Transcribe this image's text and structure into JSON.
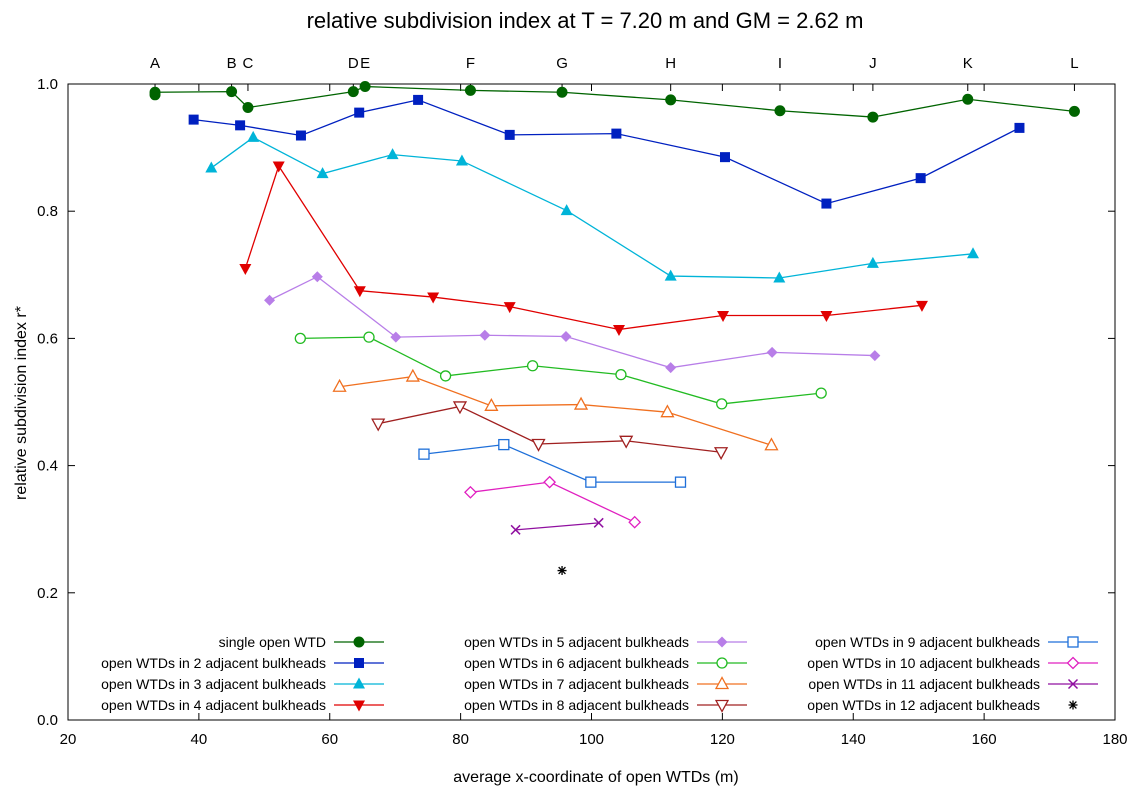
{
  "chart_data": {
    "type": "line",
    "title": "relative subdivision index at T = 7.20 m and GM = 2.62 m",
    "xlabel": "average x-coordinate of open WTDs (m)",
    "ylabel": "relative subdivision index r*",
    "xlim": [
      20,
      180
    ],
    "ylim": [
      0.0,
      1.0
    ],
    "x_ticks": [
      "20",
      "40",
      "60",
      "80",
      "100",
      "120",
      "140",
      "160",
      "180"
    ],
    "y_ticks": [
      "0.0",
      "0.2",
      "0.4",
      "0.6",
      "0.8",
      "1.0"
    ],
    "grid": false,
    "legend_position": "bottom (inside plot)",
    "top_axis_labels": [
      {
        "label": "A",
        "x": 33.3
      },
      {
        "label": "B",
        "x": 45.0
      },
      {
        "label": "C",
        "x": 47.5
      },
      {
        "label": "D",
        "x": 63.6
      },
      {
        "label": "E",
        "x": 65.4
      },
      {
        "label": "F",
        "x": 81.5
      },
      {
        "label": "G",
        "x": 95.5
      },
      {
        "label": "H",
        "x": 112.1
      },
      {
        "label": "I",
        "x": 128.8
      },
      {
        "label": "J",
        "x": 143.0
      },
      {
        "label": "K",
        "x": 157.5
      },
      {
        "label": "L",
        "x": 173.8
      }
    ],
    "series": [
      {
        "name": "single open WTD",
        "color": "#006400",
        "marker": "filled-circle",
        "points": [
          [
            33.3,
            0.983
          ],
          [
            33.3,
            0.987
          ],
          [
            45.0,
            0.988
          ],
          [
            47.5,
            0.963
          ],
          [
            63.6,
            0.988
          ],
          [
            65.4,
            0.996
          ],
          [
            81.5,
            0.99
          ],
          [
            95.5,
            0.987
          ],
          [
            112.1,
            0.975
          ],
          [
            128.8,
            0.958
          ],
          [
            143.0,
            0.948
          ],
          [
            157.5,
            0.976
          ],
          [
            173.8,
            0.957
          ]
        ]
      },
      {
        "name": "open WTDs in 2 adjacent bulkheads",
        "color": "#0020c0",
        "marker": "filled-square",
        "points": [
          [
            39.2,
            0.944
          ],
          [
            46.3,
            0.935
          ],
          [
            55.6,
            0.919
          ],
          [
            64.5,
            0.955
          ],
          [
            73.5,
            0.975
          ],
          [
            87.5,
            0.92
          ],
          [
            103.8,
            0.922
          ],
          [
            120.4,
            0.885
          ],
          [
            135.9,
            0.812
          ],
          [
            150.3,
            0.852
          ],
          [
            165.4,
            0.931
          ]
        ]
      },
      {
        "name": "open WTDs in 3 adjacent bulkheads",
        "color": "#00b4d8",
        "marker": "filled-triangle-up",
        "points": [
          [
            41.9,
            0.868
          ],
          [
            48.3,
            0.916
          ],
          [
            58.9,
            0.859
          ],
          [
            69.6,
            0.889
          ],
          [
            80.2,
            0.879
          ],
          [
            96.2,
            0.801
          ],
          [
            112.1,
            0.698
          ],
          [
            128.7,
            0.695
          ],
          [
            143.0,
            0.718
          ],
          [
            158.3,
            0.733
          ]
        ]
      },
      {
        "name": "open WTDs in 4 adjacent bulkheads",
        "color": "#e00000",
        "marker": "filled-triangle-down",
        "points": [
          [
            47.1,
            0.71
          ],
          [
            52.2,
            0.871
          ],
          [
            64.6,
            0.675
          ],
          [
            75.8,
            0.665
          ],
          [
            87.5,
            0.65
          ],
          [
            104.2,
            0.614
          ],
          [
            120.1,
            0.636
          ],
          [
            135.9,
            0.636
          ],
          [
            150.5,
            0.652
          ]
        ]
      },
      {
        "name": "open WTDs in 5 adjacent bulkheads",
        "color": "#b87ee8",
        "marker": "filled-diamond",
        "points": [
          [
            50.8,
            0.66
          ],
          [
            58.1,
            0.697
          ],
          [
            70.1,
            0.602
          ],
          [
            83.7,
            0.605
          ],
          [
            96.1,
            0.603
          ],
          [
            112.1,
            0.554
          ],
          [
            127.6,
            0.578
          ],
          [
            143.3,
            0.573
          ]
        ]
      },
      {
        "name": "open WTDs in 6 adjacent bulkheads",
        "color": "#22bb22",
        "marker": "open-circle",
        "points": [
          [
            55.5,
            0.6
          ],
          [
            66.0,
            0.602
          ],
          [
            77.7,
            0.541
          ],
          [
            91.0,
            0.557
          ],
          [
            104.5,
            0.543
          ],
          [
            119.9,
            0.497
          ],
          [
            135.1,
            0.514
          ]
        ]
      },
      {
        "name": "open WTDs in 7 adjacent bulkheads",
        "color": "#f07020",
        "marker": "open-triangle-up",
        "points": [
          [
            61.5,
            0.524
          ],
          [
            72.7,
            0.54
          ],
          [
            84.7,
            0.494
          ],
          [
            98.4,
            0.496
          ],
          [
            111.6,
            0.484
          ],
          [
            127.5,
            0.432
          ]
        ]
      },
      {
        "name": "open WTDs in 8 adjacent bulkheads",
        "color": "#a02020",
        "marker": "open-triangle-down",
        "points": [
          [
            67.4,
            0.466
          ],
          [
            79.9,
            0.493
          ],
          [
            91.9,
            0.434
          ],
          [
            105.3,
            0.439
          ],
          [
            119.8,
            0.421
          ]
        ]
      },
      {
        "name": "open WTDs in 9 adjacent bulkheads",
        "color": "#1e6fd9",
        "marker": "open-square",
        "points": [
          [
            74.4,
            0.418
          ],
          [
            86.6,
            0.433
          ],
          [
            99.9,
            0.374
          ],
          [
            113.6,
            0.374
          ]
        ]
      },
      {
        "name": "open WTDs in 10 adjacent bulkheads",
        "color": "#e020c0",
        "marker": "open-diamond",
        "points": [
          [
            81.5,
            0.358
          ],
          [
            93.6,
            0.374
          ],
          [
            106.6,
            0.311
          ]
        ]
      },
      {
        "name": "open WTDs in 11 adjacent bulkheads",
        "color": "#9010a0",
        "marker": "cross",
        "points": [
          [
            88.4,
            0.299
          ],
          [
            101.1,
            0.31
          ]
        ]
      },
      {
        "name": "open WTDs in 12 adjacent bulkheads",
        "color": "#000000",
        "marker": "star",
        "points": [
          [
            95.5,
            0.235
          ]
        ]
      }
    ]
  }
}
